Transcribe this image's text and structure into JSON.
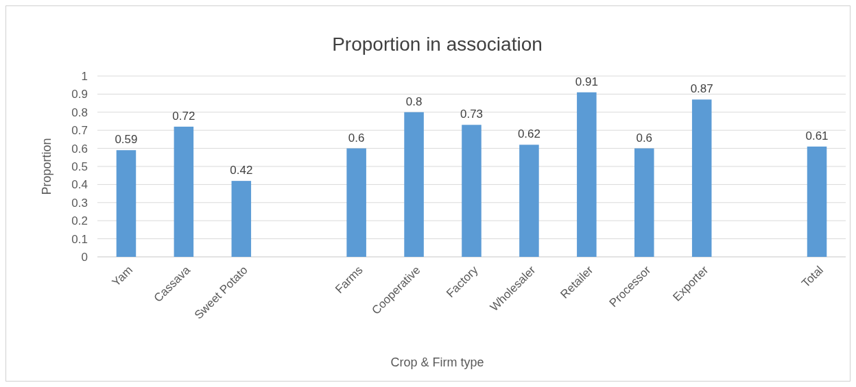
{
  "chart_data": {
    "type": "bar",
    "title": "Proportion in association",
    "xlabel": "Crop & Firm type",
    "ylabel": "Proportion",
    "categories": [
      "Yam",
      "Cassava",
      "Sweet Potato",
      null,
      "Farms",
      "Cooperative",
      "Factory",
      "Wholesaler",
      "Retailer",
      "Processor",
      "Exporter",
      null,
      "Total"
    ],
    "values": [
      0.59,
      0.72,
      0.42,
      null,
      0.6,
      0.8,
      0.73,
      0.62,
      0.91,
      0.6,
      0.87,
      null,
      0.61
    ],
    "color": "#5b9bd5",
    "ylim": [
      0,
      1
    ],
    "yticks": [
      0,
      0.1,
      0.2,
      0.3,
      0.4,
      0.5,
      0.6,
      0.7,
      0.8,
      0.9,
      1
    ],
    "grid": "y",
    "data_labels": true
  }
}
